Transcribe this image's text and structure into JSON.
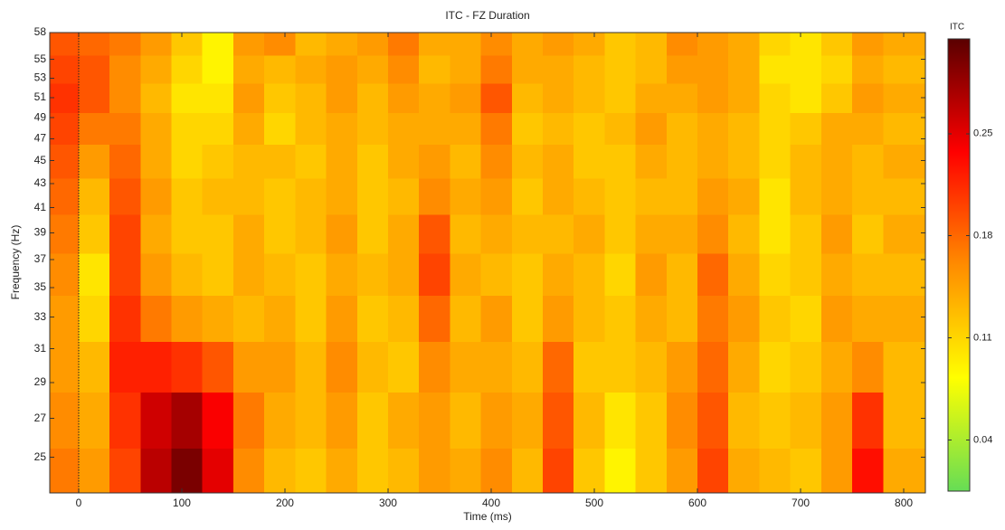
{
  "chart_data": {
    "type": "heatmap",
    "title": "ITC - FZ Duration",
    "x_label": "Time (ms)",
    "y_label": "Frequency (Hz)",
    "colorbar_label": "ITC",
    "x": [
      -15,
      15,
      45,
      75,
      105,
      135,
      165,
      195,
      225,
      255,
      285,
      315,
      345,
      375,
      405,
      435,
      465,
      495,
      525,
      555,
      585,
      615,
      645,
      675,
      705,
      735,
      765,
      795
    ],
    "y": [
      24,
      27,
      30,
      33,
      36,
      39,
      42,
      45,
      48,
      51,
      54,
      57
    ],
    "values": [
      [
        0.17,
        0.15,
        0.2,
        0.27,
        0.3,
        0.25,
        0.16,
        0.13,
        0.12,
        0.14,
        0.12,
        0.13,
        0.15,
        0.14,
        0.16,
        0.13,
        0.2,
        0.12,
        0.09,
        0.12,
        0.15,
        0.2,
        0.14,
        0.13,
        0.12,
        0.15,
        0.23,
        0.14
      ],
      [
        0.16,
        0.14,
        0.21,
        0.26,
        0.28,
        0.24,
        0.17,
        0.14,
        0.13,
        0.15,
        0.12,
        0.14,
        0.15,
        0.13,
        0.15,
        0.14,
        0.19,
        0.13,
        0.1,
        0.12,
        0.16,
        0.19,
        0.13,
        0.12,
        0.13,
        0.15,
        0.21,
        0.13
      ],
      [
        0.15,
        0.13,
        0.22,
        0.22,
        0.21,
        0.19,
        0.15,
        0.15,
        0.13,
        0.16,
        0.13,
        0.12,
        0.16,
        0.14,
        0.14,
        0.13,
        0.18,
        0.12,
        0.12,
        0.13,
        0.15,
        0.18,
        0.14,
        0.11,
        0.12,
        0.14,
        0.16,
        0.13
      ],
      [
        0.15,
        0.11,
        0.21,
        0.17,
        0.15,
        0.14,
        0.13,
        0.14,
        0.12,
        0.15,
        0.12,
        0.13,
        0.18,
        0.13,
        0.15,
        0.12,
        0.15,
        0.13,
        0.12,
        0.14,
        0.13,
        0.17,
        0.15,
        0.12,
        0.11,
        0.15,
        0.14,
        0.14
      ],
      [
        0.16,
        0.1,
        0.2,
        0.15,
        0.13,
        0.12,
        0.14,
        0.13,
        0.12,
        0.14,
        0.13,
        0.14,
        0.2,
        0.14,
        0.13,
        0.12,
        0.14,
        0.13,
        0.11,
        0.15,
        0.13,
        0.18,
        0.14,
        0.11,
        0.12,
        0.14,
        0.13,
        0.13
      ],
      [
        0.17,
        0.12,
        0.2,
        0.14,
        0.12,
        0.12,
        0.14,
        0.12,
        0.13,
        0.15,
        0.12,
        0.14,
        0.19,
        0.13,
        0.14,
        0.13,
        0.13,
        0.14,
        0.12,
        0.14,
        0.14,
        0.16,
        0.13,
        0.1,
        0.12,
        0.15,
        0.12,
        0.14
      ],
      [
        0.18,
        0.13,
        0.19,
        0.15,
        0.12,
        0.13,
        0.13,
        0.12,
        0.13,
        0.14,
        0.12,
        0.13,
        0.16,
        0.14,
        0.15,
        0.12,
        0.14,
        0.13,
        0.12,
        0.13,
        0.13,
        0.15,
        0.14,
        0.1,
        0.13,
        0.14,
        0.13,
        0.13
      ],
      [
        0.19,
        0.15,
        0.18,
        0.14,
        0.11,
        0.12,
        0.13,
        0.13,
        0.12,
        0.14,
        0.12,
        0.14,
        0.15,
        0.13,
        0.16,
        0.13,
        0.14,
        0.12,
        0.12,
        0.14,
        0.13,
        0.14,
        0.13,
        0.11,
        0.13,
        0.14,
        0.13,
        0.14
      ],
      [
        0.2,
        0.17,
        0.17,
        0.14,
        0.11,
        0.11,
        0.14,
        0.11,
        0.13,
        0.14,
        0.13,
        0.14,
        0.14,
        0.14,
        0.17,
        0.12,
        0.13,
        0.12,
        0.13,
        0.15,
        0.13,
        0.14,
        0.13,
        0.11,
        0.12,
        0.14,
        0.14,
        0.13
      ],
      [
        0.21,
        0.19,
        0.16,
        0.13,
        0.1,
        0.1,
        0.15,
        0.12,
        0.13,
        0.15,
        0.13,
        0.15,
        0.14,
        0.15,
        0.19,
        0.13,
        0.14,
        0.13,
        0.12,
        0.14,
        0.14,
        0.15,
        0.14,
        0.11,
        0.1,
        0.12,
        0.15,
        0.14
      ],
      [
        0.2,
        0.19,
        0.16,
        0.14,
        0.11,
        0.09,
        0.14,
        0.13,
        0.14,
        0.15,
        0.14,
        0.16,
        0.13,
        0.14,
        0.17,
        0.14,
        0.14,
        0.13,
        0.12,
        0.13,
        0.15,
        0.15,
        0.14,
        0.1,
        0.1,
        0.11,
        0.14,
        0.13
      ],
      [
        0.19,
        0.18,
        0.17,
        0.15,
        0.12,
        0.09,
        0.15,
        0.16,
        0.13,
        0.14,
        0.15,
        0.17,
        0.14,
        0.14,
        0.16,
        0.14,
        0.15,
        0.14,
        0.12,
        0.13,
        0.16,
        0.15,
        0.14,
        0.11,
        0.1,
        0.12,
        0.15,
        0.14
      ]
    ],
    "xlim": [
      -28,
      821
    ],
    "xticks": [
      0,
      100,
      200,
      300,
      400,
      500,
      600,
      700,
      800
    ],
    "ylim": [
      23.3,
      58
    ],
    "y_scale": "log",
    "yticks": [
      25,
      27,
      29,
      31,
      33,
      35,
      37,
      39,
      41,
      43,
      45,
      47,
      49,
      51,
      53,
      55,
      58
    ],
    "clim": [
      0.005,
      0.315
    ],
    "cticks": [
      0.04,
      0.11,
      0.18,
      0.25
    ],
    "colorscale": [
      "#66dd55",
      "#ffff00",
      "#ff8c00",
      "#ff0000",
      "#5a0000"
    ],
    "vline": 0
  }
}
